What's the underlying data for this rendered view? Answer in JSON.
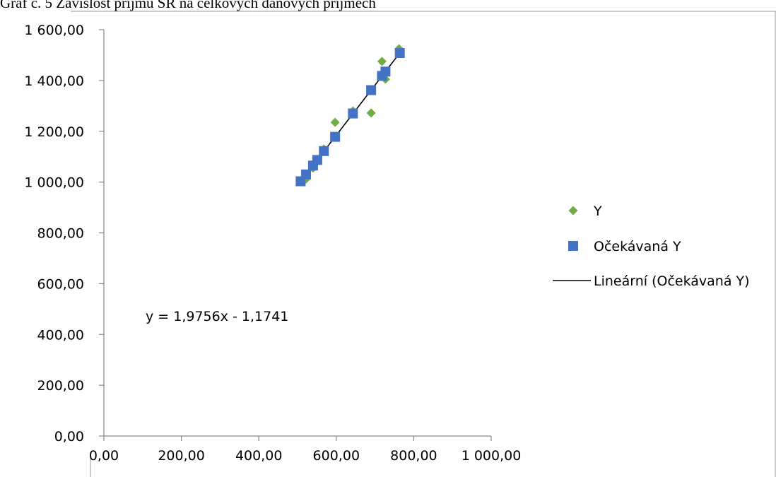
{
  "caption": "Graf č. 5 Závislost příjmů SR na celkových daňových příjmech",
  "chart_data": {
    "type": "scatter",
    "title": "",
    "xlabel": "",
    "ylabel": "",
    "xlim": [
      0,
      1000
    ],
    "ylim": [
      0,
      1600
    ],
    "x_ticks": [
      "0,00",
      "200,00",
      "400,00",
      "600,00",
      "800,00",
      "1 000,00"
    ],
    "x_tick_values": [
      0,
      200,
      400,
      600,
      800,
      1000
    ],
    "y_ticks": [
      "0,00",
      "200,00",
      "400,00",
      "600,00",
      "800,00",
      "1 000,00",
      "1 200,00",
      "1 400,00",
      "1 600,00"
    ],
    "y_tick_values": [
      0,
      200,
      400,
      600,
      800,
      1000,
      1200,
      1400,
      1600
    ],
    "grid": false,
    "legend_position": "right",
    "series": [
      {
        "name": "Y",
        "marker": "diamond",
        "color": "#70AD47",
        "points": [
          [
            510,
            1005
          ],
          [
            522,
            1012
          ],
          [
            540,
            1055
          ],
          [
            551,
            1085
          ],
          [
            568,
            1130
          ],
          [
            597,
            1235
          ],
          [
            643,
            1280
          ],
          [
            690,
            1272
          ],
          [
            718,
            1475
          ],
          [
            727,
            1405
          ],
          [
            762,
            1525
          ]
        ]
      },
      {
        "name": "Očekávaná Y",
        "marker": "square",
        "color": "#4472C4",
        "points": [
          [
            508,
            1003
          ],
          [
            522,
            1030
          ],
          [
            540,
            1065
          ],
          [
            551,
            1087
          ],
          [
            568,
            1122
          ],
          [
            597,
            1178
          ],
          [
            643,
            1270
          ],
          [
            690,
            1362
          ],
          [
            718,
            1418
          ],
          [
            727,
            1435
          ],
          [
            764,
            1508
          ]
        ]
      },
      {
        "name": "Lineární (Očekávaná Y)",
        "marker": "line",
        "color": "#000000",
        "x_range": [
          508,
          764
        ]
      }
    ],
    "trendline": {
      "equation": "y = 1,9756x - 1,1741",
      "slope": 1.9756,
      "intercept": -1.1741,
      "equation_anchor_x": 108,
      "equation_anchor_y": 560
    }
  }
}
